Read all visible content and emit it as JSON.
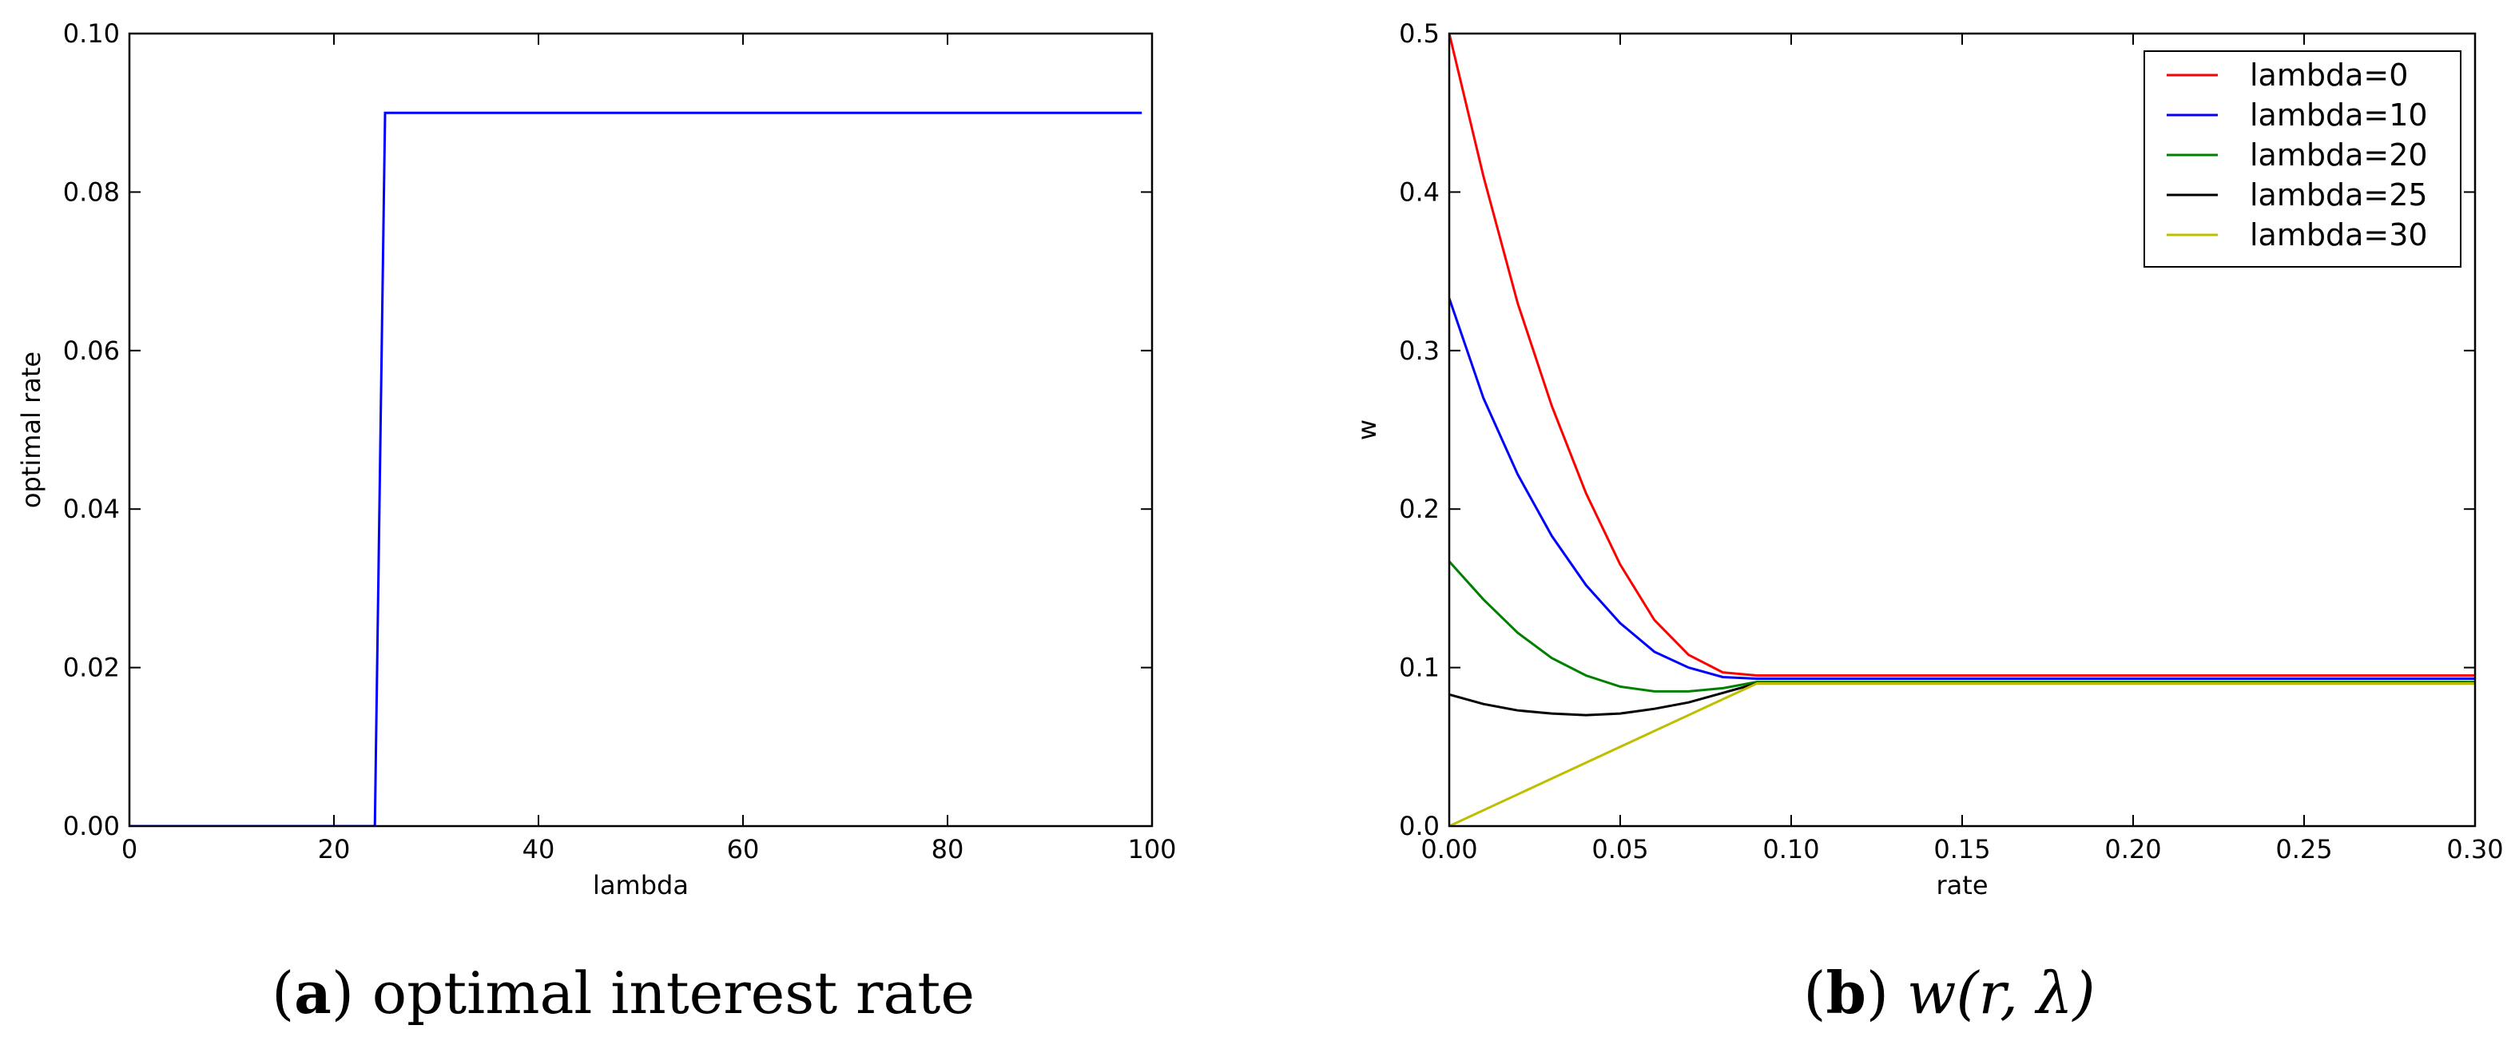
{
  "chart_data": [
    {
      "type": "line",
      "caption": {
        "label": "a",
        "text": "optimal interest rate"
      },
      "xlabel": "lambda",
      "ylabel": "optimal rate",
      "xlim": [
        0,
        100
      ],
      "ylim": [
        0,
        0.1
      ],
      "xticks": [
        0,
        20,
        40,
        60,
        80,
        100
      ],
      "xtick_labels": [
        "0",
        "20",
        "40",
        "60",
        "80",
        "100"
      ],
      "yticks": [
        0,
        0.02,
        0.04,
        0.06,
        0.08,
        0.1
      ],
      "ytick_labels": [
        "0.00",
        "0.02",
        "0.04",
        "0.06",
        "0.08",
        "0.10"
      ],
      "grid": false,
      "series": [
        {
          "name": "optimal rate",
          "color": "#0000ff",
          "x": [
            0,
            24,
            25,
            99
          ],
          "y": [
            0,
            0,
            0.09,
            0.09
          ]
        }
      ]
    },
    {
      "type": "line",
      "caption": {
        "label": "b",
        "text": "w(r, λ)"
      },
      "xlabel": "rate",
      "ylabel": "w",
      "xlim": [
        0,
        0.3
      ],
      "ylim": [
        0,
        0.5
      ],
      "xticks": [
        0,
        0.05,
        0.1,
        0.15,
        0.2,
        0.25,
        0.3
      ],
      "xtick_labels": [
        "0.00",
        "0.05",
        "0.10",
        "0.15",
        "0.20",
        "0.25",
        "0.30"
      ],
      "yticks": [
        0,
        0.1,
        0.2,
        0.3,
        0.4,
        0.5
      ],
      "ytick_labels": [
        "0.0",
        "0.1",
        "0.2",
        "0.3",
        "0.4",
        "0.5"
      ],
      "grid": false,
      "legend": "top-right",
      "series": [
        {
          "name": "lambda=0",
          "color": "#ff0000",
          "x": [
            0,
            0.01,
            0.02,
            0.03,
            0.04,
            0.05,
            0.06,
            0.07,
            0.08,
            0.09,
            0.1,
            0.15,
            0.2,
            0.25,
            0.3
          ],
          "y": [
            0.5,
            0.41,
            0.33,
            0.265,
            0.21,
            0.165,
            0.13,
            0.108,
            0.097,
            0.095,
            0.095,
            0.095,
            0.095,
            0.095,
            0.095
          ]
        },
        {
          "name": "lambda=10",
          "color": "#0000ff",
          "x": [
            0,
            0.01,
            0.02,
            0.03,
            0.04,
            0.05,
            0.06,
            0.07,
            0.08,
            0.09,
            0.1,
            0.15,
            0.2,
            0.25,
            0.3
          ],
          "y": [
            0.333,
            0.27,
            0.222,
            0.183,
            0.152,
            0.128,
            0.11,
            0.1,
            0.094,
            0.093,
            0.093,
            0.093,
            0.093,
            0.093,
            0.093
          ]
        },
        {
          "name": "lambda=20",
          "color": "#008000",
          "x": [
            0,
            0.01,
            0.02,
            0.03,
            0.04,
            0.05,
            0.06,
            0.07,
            0.08,
            0.09,
            0.1,
            0.15,
            0.2,
            0.25,
            0.3
          ],
          "y": [
            0.167,
            0.143,
            0.122,
            0.106,
            0.095,
            0.088,
            0.085,
            0.085,
            0.087,
            0.091,
            0.091,
            0.091,
            0.091,
            0.091,
            0.091
          ]
        },
        {
          "name": "lambda=25",
          "color": "#000000",
          "x": [
            0,
            0.01,
            0.02,
            0.03,
            0.04,
            0.05,
            0.06,
            0.07,
            0.08,
            0.09,
            0.1,
            0.15,
            0.2,
            0.25,
            0.3
          ],
          "y": [
            0.083,
            0.077,
            0.073,
            0.071,
            0.07,
            0.071,
            0.074,
            0.078,
            0.084,
            0.09,
            0.09,
            0.09,
            0.09,
            0.09,
            0.09
          ]
        },
        {
          "name": "lambda=30",
          "color": "#bfbf00",
          "x": [
            0,
            0.09,
            0.1,
            0.15,
            0.2,
            0.25,
            0.3
          ],
          "y": [
            0,
            0.09,
            0.09,
            0.09,
            0.09,
            0.09,
            0.09
          ]
        }
      ]
    }
  ]
}
